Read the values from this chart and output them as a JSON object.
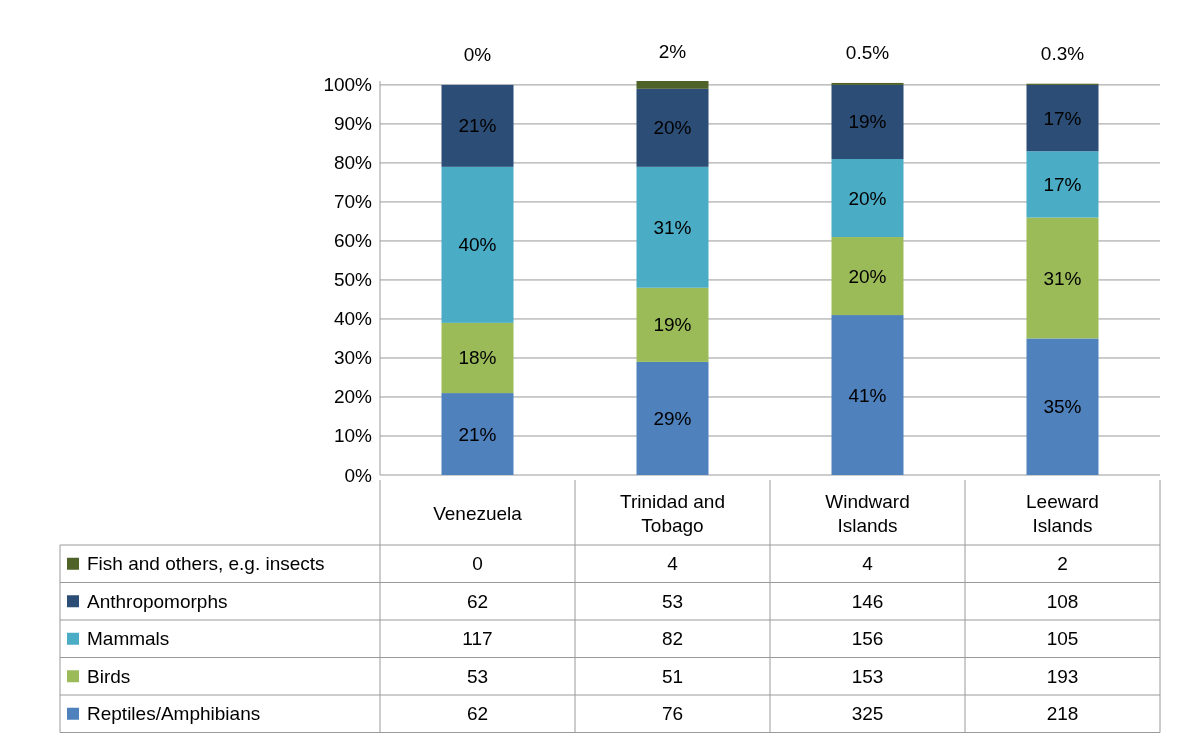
{
  "chart_data": [
    {
      "type": "bar",
      "stacked": true,
      "categories": [
        null,
        null,
        null,
        null
      ],
      "series": [
        {
          "color": "#4f81bd",
          "values": [
            21,
            29,
            41,
            35
          ],
          "value_labels": [
            "21%",
            "29%",
            "41%",
            "35%"
          ]
        },
        {
          "color": "#9bbb59",
          "values": [
            18,
            19,
            20,
            31
          ],
          "value_labels": [
            "18%",
            "19%",
            "20%",
            "31%"
          ]
        },
        {
          "color": "#4bacc6",
          "values": [
            40,
            31,
            20,
            17
          ],
          "value_labels": [
            "40%",
            "31%",
            "20%",
            "17%"
          ]
        },
        {
          "color": "#2c4d75",
          "values": [
            21,
            20,
            19,
            17
          ],
          "value_labels": [
            "21%",
            "20%",
            "19%",
            "17%"
          ]
        },
        {
          "color": "#4f6228",
          "values": [
            0,
            2,
            0.5,
            0.3
          ],
          "value_labels": [
            "0%",
            "2%",
            "0.5%",
            "0.3%"
          ]
        }
      ],
      "ylim": [
        0,
        101
      ],
      "yticks": [
        {
          "value": 0,
          "label": "0%"
        },
        {
          "value": 10,
          "label": "10%"
        },
        {
          "value": 20,
          "label": "20%"
        },
        {
          "value": 30,
          "label": "30%"
        },
        {
          "value": 40,
          "label": "40%"
        },
        {
          "value": 50,
          "label": "50%"
        },
        {
          "value": 60,
          "label": "60%"
        },
        {
          "value": 70,
          "label": "70%"
        },
        {
          "value": 80,
          "label": "80%"
        },
        {
          "value": 90,
          "label": "90%"
        },
        {
          "value": 100,
          "label": "100%"
        }
      ],
      "grid": "y"
    },
    {
      "type": "other",
      "data_labels": true,
      "categories": [
        "Venezuela",
        "Trinidad and Tobago",
        "Windward Islands",
        "Leeward Islands"
      ],
      "series": [
        {
          "name": "Fish and others, e.g. insects",
          "color": "#4f6228",
          "values": [
            0,
            4,
            4,
            2
          ]
        },
        {
          "name": "Anthropomorphs",
          "color": "#2c4d75",
          "values": [
            62,
            53,
            146,
            108
          ]
        },
        {
          "name": "Mammals",
          "color": "#4bacc6",
          "values": [
            117,
            82,
            156,
            105
          ]
        },
        {
          "name": "Birds",
          "color": "#9bbb59",
          "values": [
            53,
            51,
            153,
            193
          ]
        },
        {
          "name": "Reptiles/Amphibians",
          "color": "#4f81bd",
          "values": [
            62,
            76,
            325,
            218
          ]
        }
      ]
    }
  ]
}
